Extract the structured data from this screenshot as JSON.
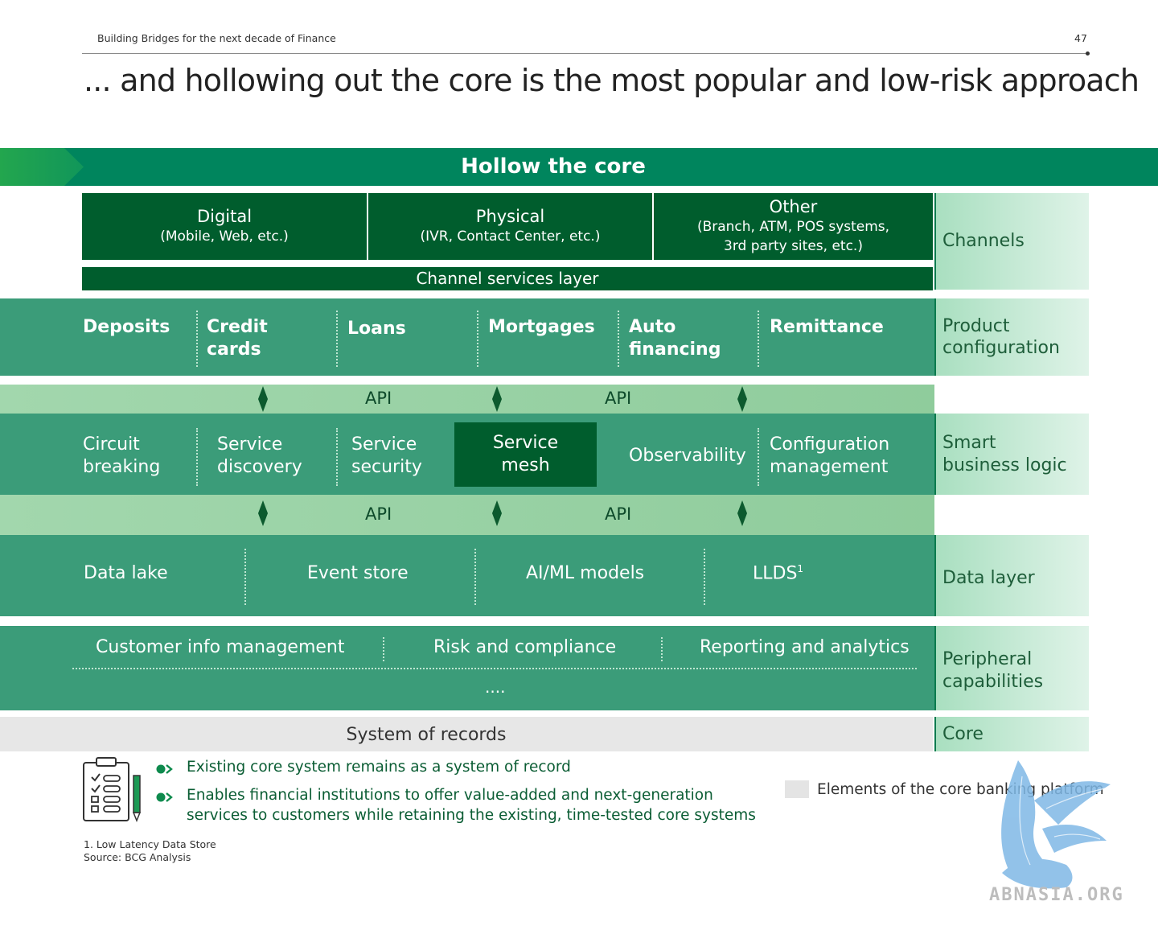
{
  "header": {
    "left_text": "Building Bridges for the next decade of Finance",
    "page_number": "47",
    "title": "... and hollowing out the core is the most popular and low-risk approach"
  },
  "banner": {
    "title": "Hollow the core"
  },
  "channels": {
    "items": [
      {
        "title": "Digital",
        "subtitle": "(Mobile, Web, etc.)"
      },
      {
        "title": "Physical",
        "subtitle": "(IVR, Contact Center, etc.)"
      },
      {
        "title": "Other",
        "subtitle": "(Branch, ATM, POS systems,",
        "subtitle2": "3rd party sites, etc.)"
      }
    ],
    "services_layer": "Channel services layer"
  },
  "products": [
    {
      "line1": "Deposits",
      "line2": ""
    },
    {
      "line1": "Credit",
      "line2": "cards"
    },
    {
      "line1": "Loans",
      "line2": ""
    },
    {
      "line1": "Mortgages",
      "line2": ""
    },
    {
      "line1": "Auto",
      "line2": "financing"
    },
    {
      "line1": "Remittance",
      "line2": ""
    }
  ],
  "api_label": "API",
  "logic": [
    {
      "line1": "Circuit",
      "line2": "breaking"
    },
    {
      "line1": "Service",
      "line2": "discovery"
    },
    {
      "line1": "Service",
      "line2": "security"
    },
    {
      "line1": "Service",
      "line2": "mesh"
    },
    {
      "line1": "Observability",
      "line2": ""
    },
    {
      "line1": "Configuration",
      "line2": "management"
    }
  ],
  "data_layer": [
    "Data lake",
    "Event store",
    "AI/ML models",
    "LLDS"
  ],
  "data_superscript": "1",
  "peripheral": {
    "items": [
      "Customer info management",
      "Risk and compliance",
      "Reporting and analytics"
    ],
    "more": "...."
  },
  "system_of_records": "System of records",
  "side_labels": {
    "channels": "Channels",
    "product": [
      "Product",
      "configuration"
    ],
    "smart": [
      "Smart",
      "business logic"
    ],
    "data": "Data layer",
    "peripheral": [
      "Peripheral",
      "capabilities"
    ],
    "core": "Core"
  },
  "notes": {
    "bullet1": "Existing core system remains as a system of record",
    "bullet2_line1": "Enables financial institutions to offer value-added and next-generation",
    "bullet2_line2": "services to customers while retaining the existing, time-tested core systems"
  },
  "legend": {
    "text": "Elements of the core banking platform",
    "swatch_color": "#e4e4e4"
  },
  "footnotes": {
    "note1": "1. Low Latency Data Store",
    "source": "Source: BCG Analysis"
  },
  "watermark": "ABNASIA.ORG",
  "colors": {
    "dark_green": "#005d2d",
    "mid_green": "#3b9c79",
    "banner_green": "#00855d",
    "api_green": "#98d1a4",
    "side_label_bg": "#c6ead5"
  }
}
